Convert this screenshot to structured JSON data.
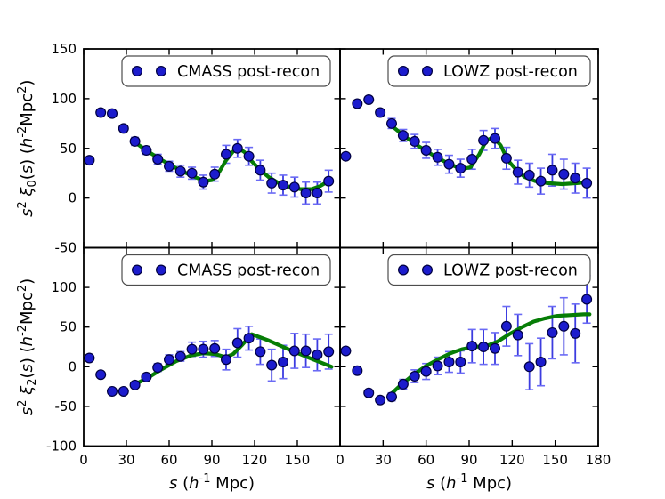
{
  "figure": {
    "background": "#ffffff",
    "description": "Two-by-two grid of correlation function multipole panels"
  },
  "colors": {
    "marker_fill": "#1c1ccd",
    "marker_edge": "#000040",
    "errorbar": "#3c3ce0",
    "errorbar_cap": "#6a6af5",
    "model_line": "#067d06",
    "axis": "#000000",
    "text": "#000000",
    "legend_border": "#4d4d4d",
    "legend_bg": "#ffffff"
  },
  "chart_data": {
    "type": "scatter",
    "layout": "2x2",
    "grid": false,
    "xlabel": "*s* (*h*^-1^ Mpc)",
    "xlim": [
      0,
      180
    ],
    "xticks": [
      0,
      30,
      60,
      90,
      120,
      150,
      180
    ],
    "xticklabels_left": [
      "0",
      "30",
      "60",
      "90",
      "120",
      "150"
    ],
    "xticklabels_right": [
      "0",
      "30",
      "60",
      "90",
      "120",
      "150",
      "180"
    ],
    "x_values": [
      4,
      12,
      20,
      28,
      36,
      44,
      52,
      60,
      68,
      76,
      84,
      92,
      100,
      108,
      116,
      124,
      132,
      140,
      148,
      156,
      164,
      172
    ],
    "rows": [
      {
        "ylabel": "*s*^2^ *ξ*_0_(*s*) (*h*^-2^Mpc^2^)",
        "ylim": [
          -50,
          150
        ],
        "yticks": [
          150,
          100,
          50,
          0,
          -50
        ]
      },
      {
        "ylabel": "*s*^2^ *ξ*_2_(*s*) (*h*^-2^Mpc^2^)",
        "ylim": [
          -100,
          150
        ],
        "yticks": [
          100,
          50,
          0,
          -50,
          -100
        ]
      }
    ],
    "panels": [
      {
        "id": "top-left",
        "row": 0,
        "col": 0,
        "legend": "CMASS post-recon",
        "y": [
          38,
          86,
          85,
          70,
          57,
          48,
          39,
          32,
          27,
          25,
          16,
          24,
          44,
          50,
          42,
          28,
          15,
          13,
          11,
          5,
          5,
          17
        ],
        "yerr": [
          2,
          2,
          2,
          3,
          4,
          4,
          5,
          5,
          6,
          6,
          7,
          7,
          9,
          9,
          9,
          10,
          10,
          10,
          10,
          11,
          11,
          11
        ],
        "model": [
          [
            34,
            58
          ],
          [
            45,
            47
          ],
          [
            55,
            38
          ],
          [
            65,
            30
          ],
          [
            75,
            23
          ],
          [
            85,
            17
          ],
          [
            90,
            18
          ],
          [
            95,
            26
          ],
          [
            100,
            38
          ],
          [
            105,
            47
          ],
          [
            109,
            50
          ],
          [
            113,
            46
          ],
          [
            118,
            37
          ],
          [
            124,
            28
          ],
          [
            130,
            21
          ],
          [
            137,
            15
          ],
          [
            145,
            11
          ],
          [
            152,
            9
          ],
          [
            160,
            9
          ],
          [
            166,
            12
          ],
          [
            172,
            17
          ]
        ]
      },
      {
        "id": "top-right",
        "row": 0,
        "col": 1,
        "legend": "LOWZ post-recon",
        "y": [
          42,
          95,
          99,
          86,
          75,
          63,
          57,
          48,
          41,
          34,
          30,
          39,
          58,
          60,
          40,
          26,
          23,
          17,
          28,
          24,
          20,
          15
        ],
        "yerr": [
          2,
          2,
          3,
          3,
          5,
          6,
          7,
          8,
          8,
          9,
          9,
          10,
          10,
          10,
          11,
          12,
          12,
          13,
          16,
          15,
          15,
          15
        ],
        "model": [
          [
            34,
            75
          ],
          [
            45,
            62
          ],
          [
            55,
            52
          ],
          [
            65,
            43
          ],
          [
            75,
            35
          ],
          [
            85,
            29
          ],
          [
            91,
            31
          ],
          [
            97,
            44
          ],
          [
            102,
            58
          ],
          [
            107,
            61
          ],
          [
            112,
            53
          ],
          [
            117,
            38
          ],
          [
            123,
            28
          ],
          [
            129,
            21
          ],
          [
            136,
            17
          ],
          [
            145,
            15
          ],
          [
            155,
            14
          ],
          [
            165,
            15
          ],
          [
            174,
            16
          ]
        ]
      },
      {
        "id": "bottom-left",
        "row": 1,
        "col": 0,
        "legend": "CMASS post-recon",
        "y": [
          11,
          -10,
          -31,
          -31,
          -23,
          -13,
          -1,
          9,
          13,
          22,
          22,
          23,
          9,
          30,
          36,
          19,
          2,
          6,
          20,
          20,
          15,
          19
        ],
        "yerr": [
          2,
          2,
          2,
          3,
          3,
          4,
          5,
          6,
          6,
          9,
          10,
          10,
          13,
          18,
          15,
          16,
          20,
          21,
          22,
          21,
          20,
          22
        ],
        "model": [
          [
            34,
            -24
          ],
          [
            45,
            -14
          ],
          [
            55,
            -3
          ],
          [
            65,
            7
          ],
          [
            75,
            14
          ],
          [
            84,
            17
          ],
          [
            92,
            16
          ],
          [
            100,
            12
          ],
          [
            105,
            16
          ],
          [
            111,
            27
          ],
          [
            118,
            41
          ],
          [
            130,
            33
          ],
          [
            145,
            21
          ],
          [
            160,
            10
          ],
          [
            174,
            0
          ]
        ]
      },
      {
        "id": "bottom-right",
        "row": 1,
        "col": 1,
        "legend": "LOWZ post-recon",
        "y": [
          20,
          -5,
          -33,
          -42,
          -38,
          -22,
          -12,
          -6,
          1,
          6,
          6,
          26,
          25,
          23,
          51,
          40,
          0,
          6,
          43,
          51,
          42,
          85
        ],
        "yerr": [
          2,
          2,
          3,
          3,
          5,
          6,
          8,
          10,
          11,
          13,
          14,
          21,
          22,
          20,
          25,
          26,
          29,
          30,
          33,
          36,
          37,
          30
        ],
        "model": [
          [
            34,
            -37
          ],
          [
            43,
            -22
          ],
          [
            52,
            -9
          ],
          [
            60,
            1
          ],
          [
            68,
            9
          ],
          [
            77,
            17
          ],
          [
            85,
            22
          ],
          [
            93,
            25
          ],
          [
            102,
            26
          ],
          [
            110,
            32
          ],
          [
            118,
            41
          ],
          [
            127,
            50
          ],
          [
            135,
            57
          ],
          [
            143,
            61
          ],
          [
            151,
            64
          ],
          [
            160,
            65
          ],
          [
            170,
            66
          ],
          [
            174,
            66
          ]
        ]
      }
    ]
  }
}
